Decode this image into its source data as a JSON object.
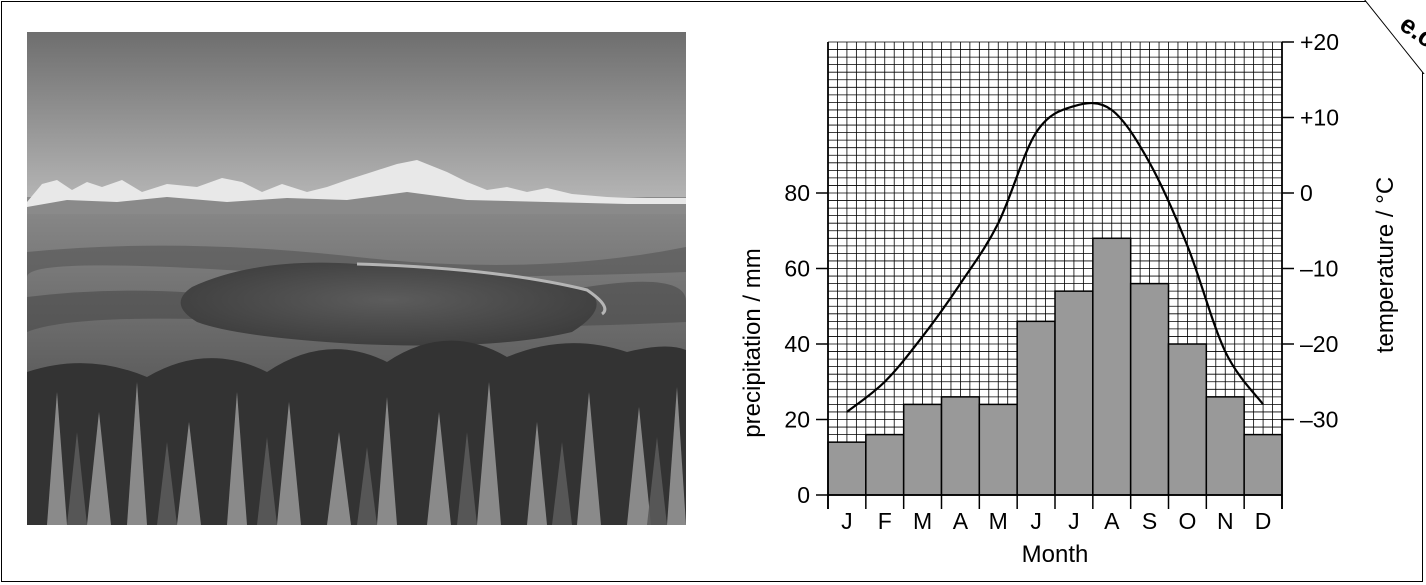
{
  "chart_data": {
    "type": "bar",
    "categories": [
      "J",
      "F",
      "M",
      "A",
      "M",
      "J",
      "J",
      "A",
      "S",
      "O",
      "N",
      "D"
    ],
    "series": [
      {
        "axis": "left",
        "kind": "bar",
        "values": [
          14,
          16,
          24,
          26,
          24,
          46,
          54,
          68,
          56,
          40,
          26,
          16
        ]
      },
      {
        "axis": "right",
        "kind": "line",
        "values": [
          -29,
          -25,
          -19,
          -12,
          -4,
          8,
          11.5,
          11,
          4,
          -7,
          -21,
          -28
        ]
      }
    ],
    "xlabel": "Month",
    "ylabel": "precipitation / mm",
    "y2label": "temperature / °C",
    "ylim": [
      0,
      120
    ],
    "y2lim": [
      -40,
      20
    ],
    "yticks": [
      0,
      20,
      40,
      60,
      80
    ],
    "y2ticks": [
      20,
      10,
      0,
      -10,
      -20,
      -30
    ],
    "y2tick_labels": [
      "+20",
      "+10",
      "0",
      "–10",
      "–20",
      "–30"
    ],
    "grid": true,
    "colors": {
      "bar_fill": "#999999",
      "line": "#000000",
      "grid": "#000000"
    }
  },
  "photo": {
    "description_icon": "tundra-landscape-photo"
  },
  "stamp": {
    "text": "e.c"
  }
}
